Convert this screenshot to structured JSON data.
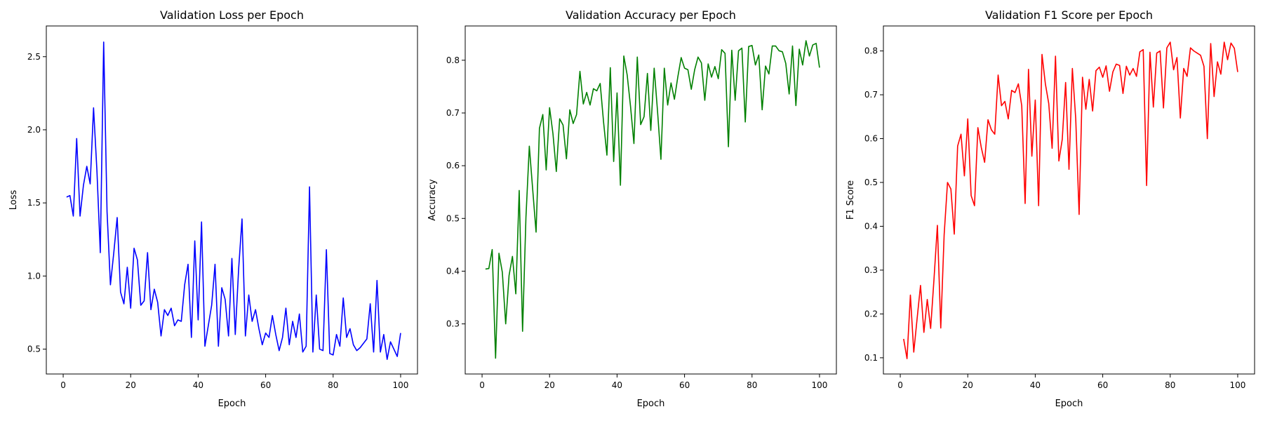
{
  "chart_data": [
    {
      "type": "line",
      "title": "Validation Loss per Epoch",
      "xlabel": "Epoch",
      "ylabel": "Loss",
      "xlim": [
        -5,
        105
      ],
      "ylim": [
        0.33,
        2.71
      ],
      "xticks": [
        0,
        20,
        40,
        60,
        80,
        100
      ],
      "yticks": [
        0.5,
        1.0,
        1.5,
        2.0,
        2.5
      ],
      "ytick_labels": [
        "0.5",
        "1.0",
        "1.5",
        "2.0",
        "2.5"
      ],
      "grid": false,
      "color": "#0000ff",
      "series": [
        {
          "x": [
            1,
            2,
            3,
            4,
            5,
            6,
            7,
            8,
            9,
            10,
            11,
            12,
            13,
            14,
            15,
            16,
            17,
            18,
            19,
            20,
            21,
            22,
            23,
            24,
            25,
            26,
            27,
            28,
            29,
            30,
            31,
            32,
            33,
            34,
            35,
            36,
            37,
            38,
            39,
            40,
            41,
            42,
            43,
            44,
            45,
            46,
            47,
            48,
            49,
            50,
            51,
            52,
            53,
            54,
            55,
            56,
            57,
            58,
            59,
            60,
            61,
            62,
            63,
            64,
            65,
            66,
            67,
            68,
            69,
            70,
            71,
            72,
            73,
            74,
            75,
            76,
            77,
            78,
            79,
            80,
            81,
            82,
            83,
            84,
            85,
            86,
            87,
            88,
            89,
            90,
            91,
            92,
            93,
            94,
            95,
            96,
            97,
            98,
            99,
            100
          ],
          "values": [
            1.54,
            1.55,
            1.41,
            1.94,
            1.41,
            1.62,
            1.75,
            1.63,
            2.15,
            1.72,
            1.16,
            2.6,
            1.44,
            0.94,
            1.16,
            1.4,
            0.89,
            0.81,
            1.06,
            0.78,
            1.19,
            1.11,
            0.8,
            0.83,
            1.16,
            0.77,
            0.91,
            0.82,
            0.59,
            0.77,
            0.73,
            0.78,
            0.66,
            0.7,
            0.69,
            0.94,
            1.08,
            0.58,
            1.24,
            0.7,
            1.37,
            0.52,
            0.66,
            0.8,
            1.08,
            0.52,
            0.92,
            0.84,
            0.59,
            1.12,
            0.6,
            1.05,
            1.39,
            0.59,
            0.87,
            0.69,
            0.77,
            0.64,
            0.53,
            0.61,
            0.58,
            0.73,
            0.6,
            0.49,
            0.58,
            0.78,
            0.53,
            0.69,
            0.58,
            0.74,
            0.48,
            0.52,
            1.61,
            0.48,
            0.87,
            0.5,
            0.49,
            1.18,
            0.47,
            0.46,
            0.6,
            0.52,
            0.85,
            0.58,
            0.64,
            0.53,
            0.49,
            0.51,
            0.54,
            0.57,
            0.81,
            0.48,
            0.97,
            0.48,
            0.6,
            0.43,
            0.55,
            0.5,
            0.45,
            0.61
          ]
        }
      ]
    },
    {
      "type": "line",
      "title": "Validation Accuracy per Epoch",
      "xlabel": "Epoch",
      "ylabel": "Accuracy",
      "xlim": [
        -5,
        105
      ],
      "ylim": [
        0.205,
        0.865
      ],
      "xticks": [
        0,
        20,
        40,
        60,
        80,
        100
      ],
      "yticks": [
        0.3,
        0.4,
        0.5,
        0.6,
        0.7,
        0.8
      ],
      "ytick_labels": [
        "0.3",
        "0.4",
        "0.5",
        "0.6",
        "0.7",
        "0.8"
      ],
      "grid": false,
      "color": "#008000",
      "series": [
        {
          "x": [
            1,
            2,
            3,
            4,
            5,
            6,
            7,
            8,
            9,
            10,
            11,
            12,
            13,
            14,
            15,
            16,
            17,
            18,
            19,
            20,
            21,
            22,
            23,
            24,
            25,
            26,
            27,
            28,
            29,
            30,
            31,
            32,
            33,
            34,
            35,
            36,
            37,
            38,
            39,
            40,
            41,
            42,
            43,
            44,
            45,
            46,
            47,
            48,
            49,
            50,
            51,
            52,
            53,
            54,
            55,
            56,
            57,
            58,
            59,
            60,
            61,
            62,
            63,
            64,
            65,
            66,
            67,
            68,
            69,
            70,
            71,
            72,
            73,
            74,
            75,
            76,
            77,
            78,
            79,
            80,
            81,
            82,
            83,
            84,
            85,
            86,
            87,
            88,
            89,
            90,
            91,
            92,
            93,
            94,
            95,
            96,
            97,
            98,
            99,
            100
          ],
          "values": [
            0.404,
            0.405,
            0.441,
            0.235,
            0.434,
            0.398,
            0.3,
            0.392,
            0.428,
            0.357,
            0.553,
            0.286,
            0.502,
            0.637,
            0.555,
            0.474,
            0.671,
            0.697,
            0.592,
            0.71,
            0.661,
            0.589,
            0.689,
            0.677,
            0.613,
            0.706,
            0.68,
            0.697,
            0.779,
            0.717,
            0.739,
            0.715,
            0.746,
            0.742,
            0.756,
            0.683,
            0.62,
            0.786,
            0.608,
            0.738,
            0.563,
            0.808,
            0.772,
            0.712,
            0.642,
            0.806,
            0.678,
            0.693,
            0.775,
            0.667,
            0.785,
            0.703,
            0.612,
            0.785,
            0.715,
            0.757,
            0.726,
            0.768,
            0.805,
            0.785,
            0.782,
            0.745,
            0.782,
            0.806,
            0.795,
            0.724,
            0.793,
            0.768,
            0.788,
            0.765,
            0.82,
            0.813,
            0.636,
            0.819,
            0.724,
            0.818,
            0.823,
            0.683,
            0.826,
            0.828,
            0.791,
            0.81,
            0.706,
            0.789,
            0.774,
            0.827,
            0.827,
            0.818,
            0.816,
            0.794,
            0.736,
            0.827,
            0.714,
            0.821,
            0.791,
            0.837,
            0.808,
            0.829,
            0.832,
            0.786
          ]
        }
      ]
    },
    {
      "type": "line",
      "title": "Validation F1 Score per Epoch",
      "xlabel": "Epoch",
      "ylabel": "F1 Score",
      "xlim": [
        -5,
        105
      ],
      "ylim": [
        0.063,
        0.857
      ],
      "xticks": [
        0,
        20,
        40,
        60,
        80,
        100
      ],
      "yticks": [
        0.1,
        0.2,
        0.3,
        0.4,
        0.5,
        0.6,
        0.7,
        0.8
      ],
      "ytick_labels": [
        "0.1",
        "0.2",
        "0.3",
        "0.4",
        "0.5",
        "0.6",
        "0.7",
        "0.8"
      ],
      "grid": false,
      "color": "#ff0000",
      "series": [
        {
          "x": [
            1,
            2,
            3,
            4,
            5,
            6,
            7,
            8,
            9,
            10,
            11,
            12,
            13,
            14,
            15,
            16,
            17,
            18,
            19,
            20,
            21,
            22,
            23,
            24,
            25,
            26,
            27,
            28,
            29,
            30,
            31,
            32,
            33,
            34,
            35,
            36,
            37,
            38,
            39,
            40,
            41,
            42,
            43,
            44,
            45,
            46,
            47,
            48,
            49,
            50,
            51,
            52,
            53,
            54,
            55,
            56,
            57,
            58,
            59,
            60,
            61,
            62,
            63,
            64,
            65,
            66,
            67,
            68,
            69,
            70,
            71,
            72,
            73,
            74,
            75,
            76,
            77,
            78,
            79,
            80,
            81,
            82,
            83,
            84,
            85,
            86,
            87,
            88,
            89,
            90,
            91,
            92,
            93,
            94,
            95,
            96,
            97,
            98,
            99,
            100
          ],
          "values": [
            0.143,
            0.098,
            0.243,
            0.113,
            0.19,
            0.265,
            0.158,
            0.233,
            0.167,
            0.28,
            0.402,
            0.168,
            0.38,
            0.5,
            0.485,
            0.382,
            0.583,
            0.61,
            0.515,
            0.645,
            0.47,
            0.447,
            0.625,
            0.58,
            0.546,
            0.643,
            0.62,
            0.61,
            0.745,
            0.675,
            0.685,
            0.645,
            0.71,
            0.705,
            0.725,
            0.675,
            0.452,
            0.758,
            0.56,
            0.688,
            0.447,
            0.792,
            0.725,
            0.68,
            0.578,
            0.788,
            0.549,
            0.598,
            0.728,
            0.53,
            0.76,
            0.645,
            0.427,
            0.74,
            0.667,
            0.735,
            0.663,
            0.755,
            0.763,
            0.74,
            0.766,
            0.708,
            0.752,
            0.77,
            0.767,
            0.703,
            0.765,
            0.745,
            0.76,
            0.742,
            0.798,
            0.803,
            0.493,
            0.797,
            0.672,
            0.795,
            0.8,
            0.67,
            0.807,
            0.82,
            0.757,
            0.785,
            0.647,
            0.76,
            0.742,
            0.807,
            0.8,
            0.795,
            0.79,
            0.765,
            0.6,
            0.817,
            0.696,
            0.775,
            0.747,
            0.82,
            0.78,
            0.818,
            0.806,
            0.752
          ]
        }
      ]
    }
  ]
}
